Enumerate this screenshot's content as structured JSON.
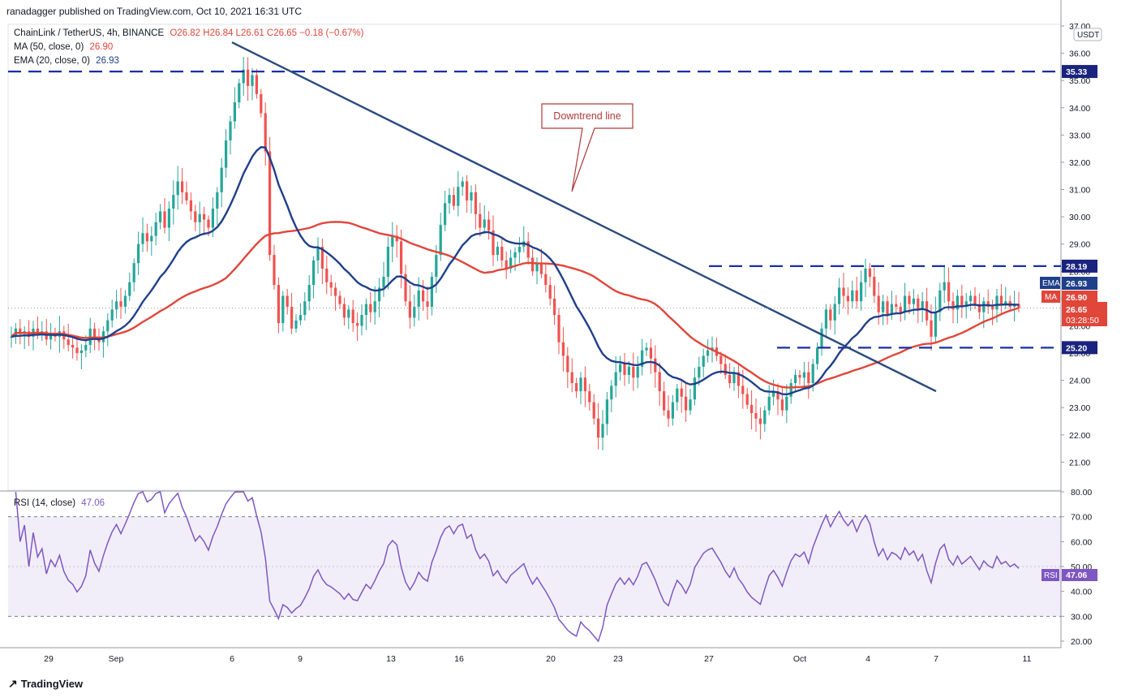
{
  "header": {
    "publisher": "ranadagger published on TradingView.com, Oct 10, 2021 16:31 UTC"
  },
  "legend": {
    "symbol": "ChainLink / TetherUS, 4h, BINANCE",
    "ohlc": "O26.82 H26.84 L26.61 C26.65 −0.18 (−0.67%)",
    "ma_label": "MA (50, close, 0)",
    "ma_value": "26.90",
    "ema_label": "EMA (20, close, 0)",
    "ema_value": "26.93",
    "rsi_label": "RSI (14, close)",
    "rsi_value": "47.06"
  },
  "footer": {
    "brand": "TradingView"
  },
  "colors": {
    "up": "#26a69a",
    "down": "#ef5350",
    "ema": "#1f3f8a",
    "ma": "#e0463a",
    "trend": "#2a4a7f",
    "level": "#1a2fa8",
    "rsi": "#7e57c2",
    "price_badge": "#e0463a"
  },
  "chart_data": {
    "type": "candlestick",
    "symbol": "LINKUSDT",
    "timeframe": "4h",
    "price_axis": {
      "min": 20.0,
      "max": 37.0,
      "ticks": [
        "21.00",
        "22.00",
        "23.00",
        "24.00",
        "25.00",
        "26.00",
        "27.00",
        "28.00",
        "29.00",
        "30.00",
        "31.00",
        "32.00",
        "33.00",
        "34.00",
        "35.00",
        "36.00",
        "37.00"
      ],
      "unit": "USDT"
    },
    "x_ticks": [
      "29",
      "Sep",
      "6",
      "9",
      "13",
      "16",
      "20",
      "23",
      "27",
      "Oct",
      "4",
      "7",
      "11"
    ],
    "price_labels": {
      "r1": "35.33",
      "r2": "28.19",
      "s1": "25.20",
      "ema": "26.93",
      "ma": "26.90",
      "last": "26.65",
      "countdown": "03:28:50",
      "ema_tag": "EMA",
      "ma_tag": "MA"
    },
    "levels": [
      35.33,
      28.19,
      25.2
    ],
    "annotation": "Downtrend line",
    "trendline": {
      "from": {
        "date": "Sep 6",
        "price": 36.4
      },
      "to": {
        "date": "Oct 10",
        "price": 23.6
      }
    },
    "close_series": [
      25.6,
      25.9,
      25.7,
      25.8,
      25.6,
      25.9,
      25.7,
      25.8,
      25.5,
      25.7,
      25.6,
      25.8,
      25.5,
      25.3,
      25.2,
      25.0,
      25.1,
      25.3,
      25.9,
      25.6,
      25.4,
      25.8,
      26.2,
      26.6,
      26.9,
      26.7,
      27.1,
      27.6,
      28.3,
      29.0,
      29.4,
      29.1,
      29.3,
      29.8,
      30.2,
      29.6,
      30.3,
      30.8,
      31.3,
      30.9,
      30.6,
      30.2,
      29.8,
      30.1,
      29.9,
      29.6,
      30.3,
      30.9,
      31.8,
      32.8,
      33.5,
      34.2,
      34.9,
      35.4,
      34.8,
      35.2,
      34.5,
      33.8,
      32.4,
      28.6,
      27.5,
      26.1,
      27.1,
      26.7,
      25.9,
      26.2,
      26.4,
      26.9,
      27.5,
      28.4,
      28.9,
      28.1,
      27.6,
      27.4,
      27.1,
      26.8,
      26.3,
      26.6,
      26.1,
      26.0,
      26.4,
      26.8,
      26.5,
      26.9,
      27.4,
      27.8,
      28.9,
      29.3,
      29.1,
      27.9,
      26.9,
      26.3,
      26.7,
      27.3,
      26.9,
      26.7,
      27.8,
      28.6,
      29.7,
      30.5,
      30.8,
      30.4,
      31.1,
      31.3,
      30.6,
      30.9,
      30.1,
      29.6,
      29.9,
      29.5,
      28.6,
      28.9,
      28.4,
      28.1,
      28.5,
      28.7,
      28.9,
      29.1,
      28.5,
      28.0,
      28.3,
      27.9,
      27.5,
      27.0,
      26.4,
      25.4,
      24.9,
      24.3,
      23.9,
      23.6,
      24.1,
      23.6,
      23.2,
      22.6,
      21.9,
      22.4,
      23.3,
      23.8,
      24.3,
      24.6,
      24.2,
      24.5,
      24.1,
      24.5,
      25.1,
      25.2,
      24.8,
      24.3,
      23.6,
      22.9,
      22.6,
      23.2,
      23.7,
      23.4,
      22.9,
      23.3,
      24.1,
      24.5,
      24.9,
      25.1,
      25.2,
      24.9,
      24.6,
      24.2,
      23.9,
      24.3,
      23.8,
      23.5,
      23.1,
      22.8,
      22.6,
      22.4,
      22.9,
      23.4,
      23.6,
      23.3,
      22.9,
      23.4,
      23.9,
      24.2,
      24.1,
      24.3,
      23.9,
      24.6,
      25.2,
      25.9,
      26.6,
      26.2,
      26.8,
      27.4,
      27.1,
      26.9,
      27.3,
      26.9,
      27.6,
      28.1,
      27.8,
      27.1,
      26.5,
      26.9,
      26.4,
      26.8,
      26.7,
      26.5,
      27.1,
      26.8,
      27.0,
      26.6,
      26.9,
      26.2,
      25.6,
      26.5,
      27.3,
      27.6,
      26.9,
      26.6,
      27.1,
      26.7,
      26.9,
      27.1,
      26.8,
      26.5,
      26.9,
      26.7,
      26.6,
      27.1,
      26.8,
      26.9,
      26.7,
      26.8,
      26.65
    ],
    "rsi": {
      "min": 20,
      "max": 80,
      "ticks": [
        "20.00",
        "30.00",
        "40.00",
        "50.00",
        "60.00",
        "70.00",
        "80.00"
      ],
      "overbought": 70,
      "oversold": 30,
      "last": "47.06",
      "tag": "RSI"
    }
  }
}
